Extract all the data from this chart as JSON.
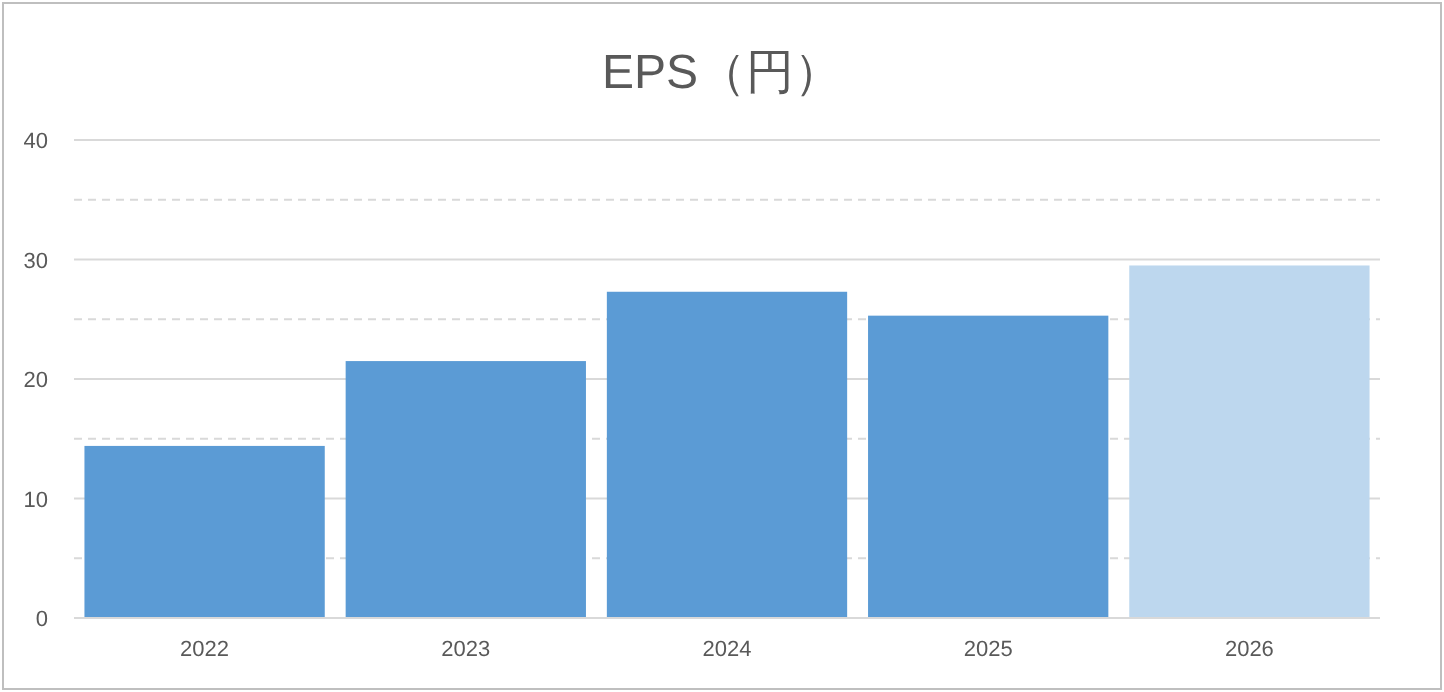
{
  "chart_data": {
    "type": "bar",
    "title": "EPS（円）",
    "categories": [
      "2022",
      "2023",
      "2024",
      "2025",
      "2026"
    ],
    "values": [
      14.4,
      21.5,
      27.3,
      25.3,
      29.5
    ],
    "colors": [
      "#5b9bd5",
      "#5b9bd5",
      "#5b9bd5",
      "#5b9bd5",
      "#bdd7ee"
    ],
    "ylim": [
      0,
      40
    ],
    "yticks": [
      0,
      {
        "value": 5,
        "label": null
      },
      10,
      {
        "value": 15,
        "label": null
      },
      20,
      {
        "value": 25,
        "label": null
      },
      30,
      {
        "value": 35,
        "label": null
      },
      40
    ],
    "grid": "y"
  }
}
